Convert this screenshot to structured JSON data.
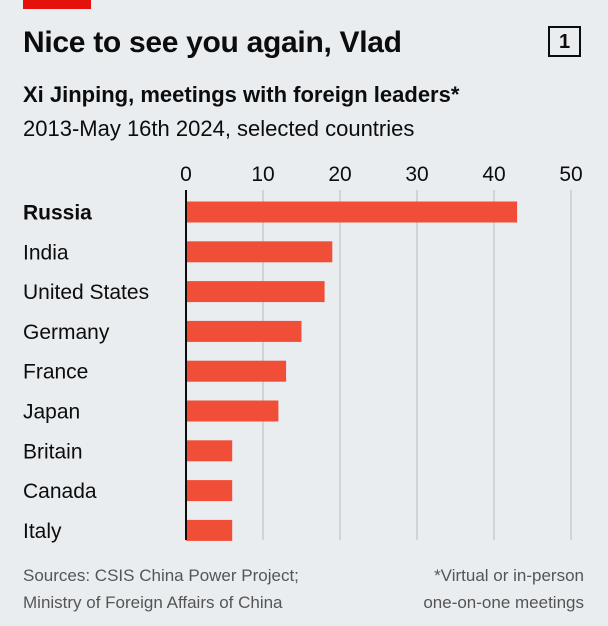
{
  "header": {
    "title": "Nice to see you again, Vlad",
    "chart_number": "1",
    "subtitle": "Xi Jinping, meetings with foreign leaders*",
    "subtitle2": "2013-May 16th 2024, selected countries"
  },
  "footer": {
    "source_lines": [
      "Sources: CSIS China Power Project;",
      "Ministry of Foreign Affairs of China"
    ],
    "note_lines": [
      "*Virtual or in-person",
      "one-on-one meetings"
    ]
  },
  "colors": {
    "bar": "#f04e37",
    "accent": "#e3120b",
    "grid": "#b7bcc0",
    "background": "#e9edf0"
  },
  "chart_data": {
    "type": "bar",
    "orientation": "horizontal",
    "categories": [
      "Russia",
      "India",
      "United States",
      "Germany",
      "France",
      "Japan",
      "Britain",
      "Canada",
      "Italy"
    ],
    "values": [
      43,
      19,
      18,
      15,
      13,
      12,
      6,
      6,
      6
    ],
    "highlight": "Russia",
    "xlim": [
      0,
      50
    ],
    "xticks": [
      0,
      10,
      20,
      30,
      40,
      50
    ],
    "grid": true,
    "title": "Nice to see you again, Vlad",
    "xlabel": "",
    "ylabel": ""
  }
}
